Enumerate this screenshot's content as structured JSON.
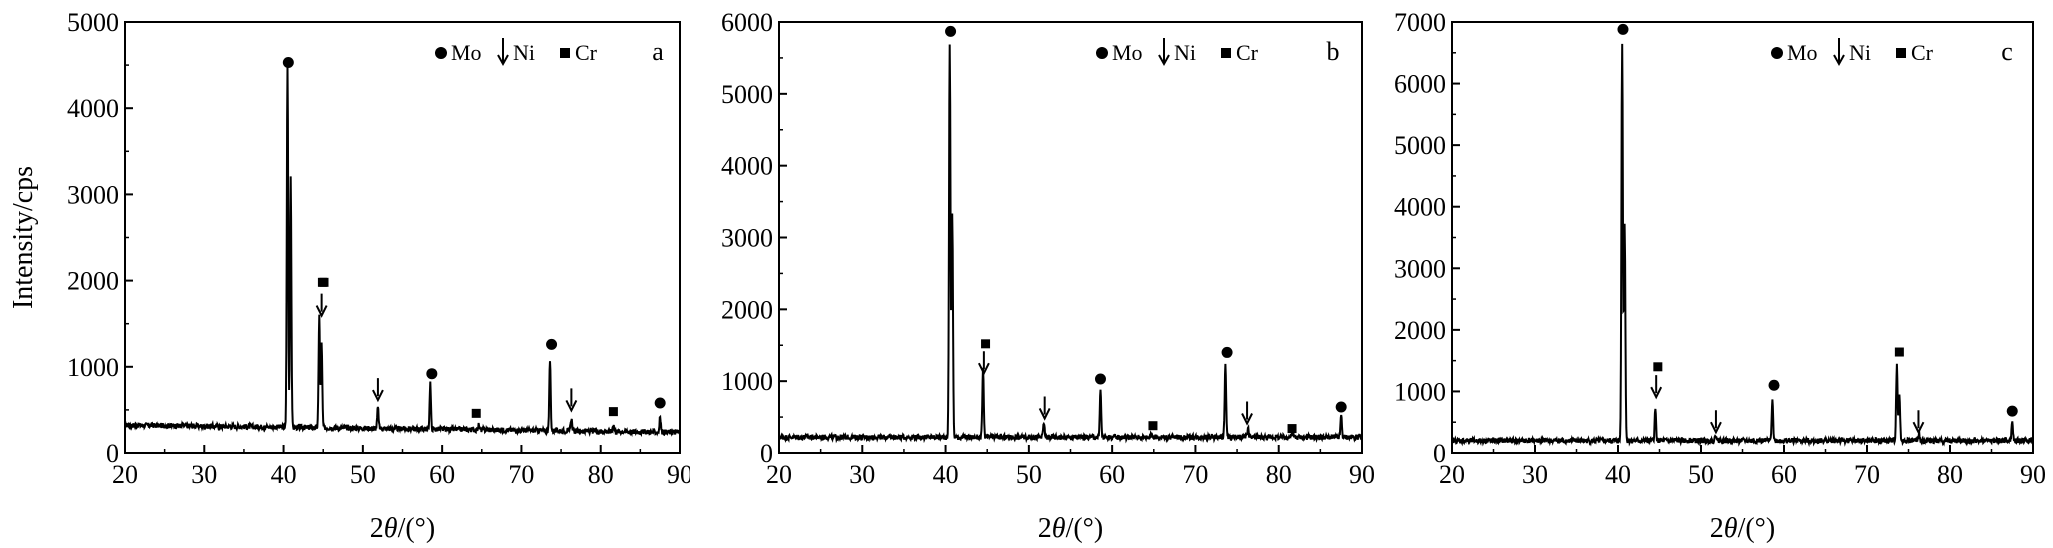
{
  "chart_data": [
    {
      "panel": "a",
      "type": "line",
      "panel_label": "a",
      "xlabel": "2θ/(°)",
      "ylabel": "Intensity/cps",
      "xlim": [
        20,
        90
      ],
      "ylim": [
        0,
        5000
      ],
      "xticks": [
        20,
        30,
        40,
        50,
        60,
        70,
        80,
        90
      ],
      "yticks": [
        0,
        1000,
        2000,
        3000,
        4000,
        5000
      ],
      "baseline": 280,
      "legend": [
        {
          "symbol": "●",
          "label": "Mo"
        },
        {
          "symbol": "↓",
          "label": "Ni"
        },
        {
          "symbol": "■",
          "label": "Cr"
        }
      ],
      "peaks": [
        {
          "x": 40.5,
          "y": 4500,
          "phase": "Mo"
        },
        {
          "x": 40.9,
          "y": 3200,
          "phase": "Mo"
        },
        {
          "x": 44.5,
          "y": 1600,
          "phase": "Cr"
        },
        {
          "x": 44.8,
          "y": 1250,
          "phase": "Ni"
        },
        {
          "x": 51.9,
          "y": 520,
          "phase": "Ni"
        },
        {
          "x": 58.5,
          "y": 820,
          "phase": "Mo"
        },
        {
          "x": 64.6,
          "y": 330,
          "phase": "Cr"
        },
        {
          "x": 73.6,
          "y": 1100,
          "phase": "Mo"
        },
        {
          "x": 76.3,
          "y": 430,
          "phase": "Ni"
        },
        {
          "x": 81.6,
          "y": 360,
          "phase": "Cr"
        },
        {
          "x": 87.5,
          "y": 450,
          "phase": "Mo"
        }
      ],
      "markers": [
        {
          "x": 40.6,
          "y": 4530,
          "type": "circle"
        },
        {
          "x": 44.9,
          "y": 1980,
          "type": "square"
        },
        {
          "x": 45.1,
          "y": 1980,
          "type": "square"
        },
        {
          "x": 44.8,
          "y": 1710,
          "type": "arrow"
        },
        {
          "x": 51.9,
          "y": 730,
          "type": "arrow"
        },
        {
          "x": 58.7,
          "y": 920,
          "type": "circle"
        },
        {
          "x": 64.3,
          "y": 460,
          "type": "square"
        },
        {
          "x": 73.8,
          "y": 1260,
          "type": "circle"
        },
        {
          "x": 76.3,
          "y": 610,
          "type": "arrow"
        },
        {
          "x": 81.6,
          "y": 480,
          "type": "square"
        },
        {
          "x": 87.5,
          "y": 580,
          "type": "circle"
        }
      ]
    },
    {
      "panel": "b",
      "type": "line",
      "panel_label": "b",
      "xlabel": "2θ/(°)",
      "ylabel": "",
      "xlim": [
        20,
        90
      ],
      "ylim": [
        0,
        6000
      ],
      "xticks": [
        20,
        30,
        40,
        50,
        60,
        70,
        80,
        90
      ],
      "yticks": [
        0,
        1000,
        2000,
        3000,
        4000,
        5000,
        6000
      ],
      "baseline": 220,
      "legend": [
        {
          "symbol": "●",
          "label": "Mo"
        },
        {
          "symbol": "↓",
          "label": "Ni"
        },
        {
          "symbol": "■",
          "label": "Cr"
        }
      ],
      "peaks": [
        {
          "x": 40.5,
          "y": 5700,
          "phase": "Mo"
        },
        {
          "x": 40.8,
          "y": 3300,
          "phase": "Mo"
        },
        {
          "x": 44.5,
          "y": 1150,
          "phase": "Ni"
        },
        {
          "x": 51.8,
          "y": 420,
          "phase": "Ni"
        },
        {
          "x": 58.6,
          "y": 880,
          "phase": "Mo"
        },
        {
          "x": 64.7,
          "y": 280,
          "phase": "Cr"
        },
        {
          "x": 73.6,
          "y": 1250,
          "phase": "Mo"
        },
        {
          "x": 76.3,
          "y": 350,
          "phase": "Ni"
        },
        {
          "x": 81.6,
          "y": 280,
          "phase": "Cr"
        },
        {
          "x": 87.5,
          "y": 520,
          "phase": "Mo"
        }
      ],
      "markers": [
        {
          "x": 40.6,
          "y": 5870,
          "type": "circle"
        },
        {
          "x": 44.8,
          "y": 1520,
          "type": "square"
        },
        {
          "x": 44.6,
          "y": 1250,
          "type": "arrow"
        },
        {
          "x": 51.9,
          "y": 620,
          "type": "arrow"
        },
        {
          "x": 58.6,
          "y": 1030,
          "type": "circle"
        },
        {
          "x": 64.9,
          "y": 380,
          "type": "square"
        },
        {
          "x": 73.8,
          "y": 1400,
          "type": "circle"
        },
        {
          "x": 76.2,
          "y": 550,
          "type": "arrow"
        },
        {
          "x": 81.6,
          "y": 340,
          "type": "square"
        },
        {
          "x": 87.5,
          "y": 640,
          "type": "circle"
        }
      ]
    },
    {
      "panel": "c",
      "type": "line",
      "panel_label": "c",
      "xlabel": "2θ/(°)",
      "ylabel": "",
      "xlim": [
        20,
        90
      ],
      "ylim": [
        0,
        7000
      ],
      "xticks": [
        20,
        30,
        40,
        50,
        60,
        70,
        80,
        90
      ],
      "yticks": [
        0,
        1000,
        2000,
        3000,
        4000,
        5000,
        6000,
        7000
      ],
      "baseline": 200,
      "legend": [
        {
          "symbol": "●",
          "label": "Mo"
        },
        {
          "symbol": "↓",
          "label": "Ni"
        },
        {
          "symbol": "■",
          "label": "Cr"
        }
      ],
      "peaks": [
        {
          "x": 40.5,
          "y": 6650,
          "phase": "Mo"
        },
        {
          "x": 40.8,
          "y": 3700,
          "phase": "Mo"
        },
        {
          "x": 44.5,
          "y": 700,
          "phase": "Ni"
        },
        {
          "x": 51.8,
          "y": 300,
          "phase": "Ni"
        },
        {
          "x": 58.6,
          "y": 900,
          "phase": "Mo"
        },
        {
          "x": 73.6,
          "y": 1450,
          "phase": "Mo"
        },
        {
          "x": 73.9,
          "y": 950,
          "phase": "Mo"
        },
        {
          "x": 76.3,
          "y": 280,
          "phase": "Ni"
        },
        {
          "x": 87.5,
          "y": 500,
          "phase": "Mo"
        }
      ],
      "markers": [
        {
          "x": 40.6,
          "y": 6880,
          "type": "circle"
        },
        {
          "x": 44.8,
          "y": 1400,
          "type": "square"
        },
        {
          "x": 44.6,
          "y": 1070,
          "type": "arrow"
        },
        {
          "x": 51.8,
          "y": 500,
          "type": "arrow"
        },
        {
          "x": 58.8,
          "y": 1100,
          "type": "circle"
        },
        {
          "x": 73.9,
          "y": 1640,
          "type": "square"
        },
        {
          "x": 76.2,
          "y": 500,
          "type": "arrow"
        },
        {
          "x": 87.5,
          "y": 680,
          "type": "circle"
        }
      ]
    }
  ]
}
